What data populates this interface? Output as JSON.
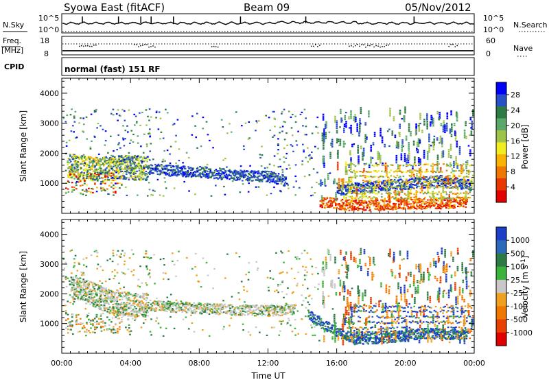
{
  "header": {
    "station": "Syowa East (fitACF)",
    "beam": "Beam 09",
    "date": "05/Nov/2012"
  },
  "panels": {
    "nsky": {
      "label": "N.Sky",
      "right_label": "N.Search",
      "tick_top": "10^5",
      "tick_bottom": "10^0"
    },
    "freq": {
      "label": "Freq.",
      "unit": "[MHz]",
      "left_top": "18",
      "left_bottom": "8",
      "right_top": "60",
      "right_bottom": "0",
      "right_label": "Nave"
    },
    "cpid": {
      "label": "CPID",
      "mode": "normal (fast) 151 RF"
    }
  },
  "colorbars": {
    "power": {
      "label": "Power [dB]",
      "ticks": [
        "4",
        "8",
        "12",
        "16",
        "20",
        "24",
        "28"
      ],
      "colors": [
        "#0000ff",
        "#2850c8",
        "#2e7a44",
        "#5aa86a",
        "#9fc24a",
        "#f0ee20",
        "#f8b400",
        "#f07800",
        "#e83800",
        "#e00000"
      ]
    },
    "velocity": {
      "label": "Velocity [m s",
      "label_sup": "-1",
      "label_end": "]",
      "ticks": [
        "1000",
        "500",
        "100",
        "25",
        "-25",
        "-100",
        "-500",
        "-1000"
      ],
      "colors": [
        "#1d3fc8",
        "#2a6ab8",
        "#2e7a44",
        "#3cb43c",
        "#c8c8c8",
        "#f0a020",
        "#f07800",
        "#e84000",
        "#e00000"
      ]
    }
  },
  "chart_data": [
    {
      "type": "heatmap",
      "title": "",
      "xlabel": "Time UT",
      "ylabel": "Slant Range [km]",
      "xlim": [
        "00:00",
        "24:00"
      ],
      "ylim": [
        0,
        4500
      ],
      "x_ticks": [
        "00:00",
        "04:00",
        "08:00",
        "12:00",
        "16:00",
        "20:00",
        "00:00"
      ],
      "y_ticks": [
        1000,
        2000,
        3000,
        4000
      ],
      "colorbar": "Power [dB]",
      "series": [
        {
          "name": "",
          "x": [
            0.3,
            2.0,
            4.0,
            6.0,
            8.0,
            10.0,
            12.0,
            13.0
          ],
          "range_km": [
            1600,
            1500,
            1550,
            1450,
            1400,
            1300,
            1250,
            1100
          ]
        },
        {
          "name": "",
          "x": [
            15.0,
            16.5,
            17.5,
            18.5,
            20.0,
            22.0,
            23.5
          ],
          "range_km": [
            400,
            300,
            280,
            300,
            350,
            350,
            400
          ]
        },
        {
          "name": "",
          "x": [
            16.0,
            18.0,
            20.0,
            22.0,
            23.8
          ],
          "range_km": [
            800,
            900,
            1000,
            1100,
            950
          ]
        }
      ]
    },
    {
      "type": "heatmap",
      "title": "",
      "xlabel": "Time UT",
      "ylabel": "Slant Range [km]",
      "xlim": [
        "00:00",
        "24:00"
      ],
      "ylim": [
        0,
        4500
      ],
      "x_ticks": [
        "00:00",
        "04:00",
        "08:00",
        "12:00",
        "16:00",
        "20:00",
        "00:00"
      ],
      "y_ticks": [
        1000,
        2000,
        3000,
        4000
      ],
      "colorbar": "Velocity [m s-1]",
      "series": [
        {
          "name": "",
          "x": [
            0.5,
            3.0,
            6.0,
            9.0,
            12.0,
            13.5
          ],
          "range_km": [
            2300,
            1700,
            1600,
            1500,
            1450,
            1500
          ]
        },
        {
          "name": "",
          "x": [
            14.3,
            15.5,
            17.0,
            19.0,
            21.0,
            23.5
          ],
          "range_km": [
            1300,
            900,
            500,
            550,
            700,
            650
          ]
        }
      ]
    }
  ]
}
